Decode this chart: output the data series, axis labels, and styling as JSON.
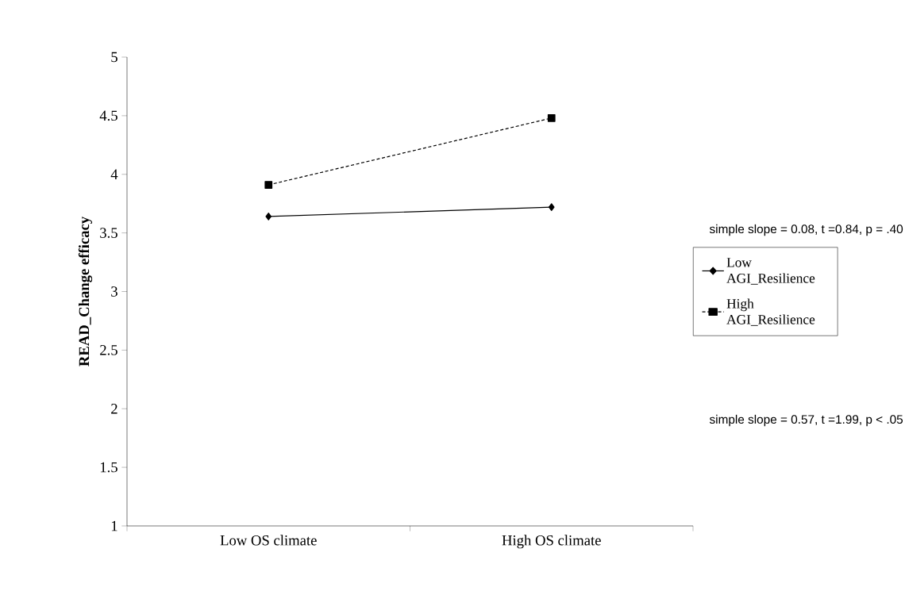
{
  "chart_data": {
    "type": "line",
    "ylabel": "READ_Change  efficacy",
    "categories": [
      "Low OS climate",
      "High OS climate"
    ],
    "series": [
      {
        "name": "Low AGI_Resilience",
        "color": "#000000",
        "values": [
          3.64,
          3.72
        ],
        "marker": "diamond",
        "line_style": "solid"
      },
      {
        "name": "High AGI_Resilience",
        "color": "#000000",
        "values": [
          3.91,
          4.48
        ],
        "marker": "square",
        "line_style": "dashed"
      }
    ],
    "ylim": [
      1,
      5
    ],
    "yticks": [
      1,
      1.5,
      2,
      2.5,
      3,
      3.5,
      4,
      4.5,
      5
    ],
    "legend": "right",
    "grid": false,
    "annotations": [
      "simple slope = 0.08, t =0.84, p = .40",
      "simple slope = 0.57, t =1.99, p < .05"
    ]
  }
}
